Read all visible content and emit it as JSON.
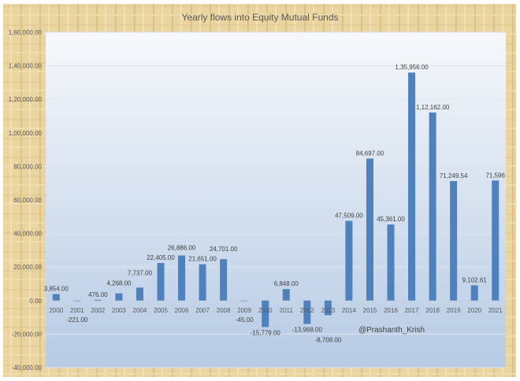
{
  "chart_data": {
    "type": "bar",
    "title": "Yearly flows into Equity Mutual Funds",
    "xlabel": "",
    "ylabel": "",
    "ylim": [
      -40000,
      160000
    ],
    "yticks": [
      -40000,
      -20000,
      0,
      20000,
      40000,
      60000,
      80000,
      100000,
      120000,
      140000,
      160000
    ],
    "ytick_labels": [
      "-40,000.00",
      "-20,000.00",
      "0.00",
      "20,000.00",
      "40,000.00",
      "60,000.00",
      "80,000.00",
      "1,00,000.00",
      "1,20,000.00",
      "1,40,000.00",
      "1,60,000.00"
    ],
    "grid": true,
    "categories": [
      "2000",
      "2001",
      "2002",
      "2003",
      "2004",
      "2005",
      "2006",
      "2007",
      "2008",
      "2009",
      "2010",
      "2011",
      "2012",
      "2013",
      "2014",
      "2015",
      "2016",
      "2017",
      "2018",
      "2019",
      "2020",
      "2021"
    ],
    "values": [
      3854,
      -221,
      476,
      4268,
      7737,
      22405,
      26886,
      21651,
      24701,
      -45,
      -15779,
      6848,
      -13968,
      -8708,
      47509,
      84697,
      45361,
      135956,
      112162,
      71249.54,
      9102.61,
      71596
    ],
    "data_labels": [
      "3,854.00",
      "-221.00",
      "476.00",
      "4,268.00",
      "7,737.00",
      "22,405.00",
      "26,886.00",
      "21,651.00",
      "24,701.00",
      "-45.00",
      "-15,779.00",
      "6,848.00",
      "-13,968.00",
      "-8,708.00",
      "47,509.00",
      "84,697.00",
      "45,361.00",
      "1,35,956.00",
      "1,12,162.00",
      "71,249.54",
      "9,102.61",
      "71,596"
    ],
    "annotation": "@Prashanth_Krish",
    "colors": {
      "bar": "#4f81bd",
      "frame": "#e6cf98",
      "plot_top": "#f4f7fb",
      "plot_bottom": "#b9cde6"
    }
  }
}
